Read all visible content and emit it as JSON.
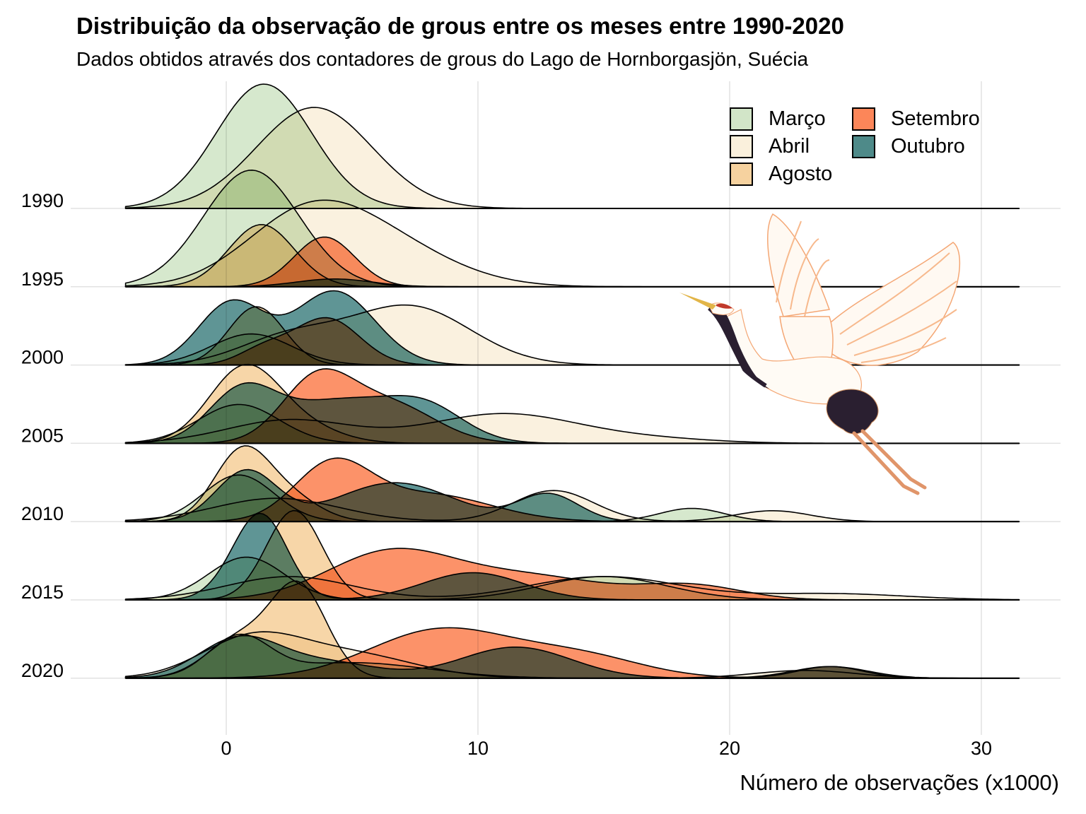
{
  "title": "Distribuição da observação de grous entre os meses entre 1990-2020",
  "subtitle": "Dados obtidos através dos contadores de grous do Lago de Hornborgasjön, Suécia",
  "illustration": "flying-crane-icon",
  "chart_data": {
    "type": "ridgeline-density",
    "title": "Distribuição da observação de grous entre os meses entre 1990-2020",
    "subtitle": "Dados obtidos através dos contadores de grous do Lago de Hornborgasjön, Suécia",
    "xlabel": "Número de observações (x1000)",
    "ylabel": "",
    "xlim": [
      -4,
      31.5
    ],
    "x_ticks": [
      0,
      10,
      20,
      30
    ],
    "x_tick_labels": [
      "0",
      "10",
      "20",
      "30"
    ],
    "y_categories": [
      "1990",
      "1995",
      "2000",
      "2005",
      "2010",
      "2015",
      "2020"
    ],
    "grid": true,
    "legend": {
      "position": "top-right",
      "entries": [
        {
          "label": "Março",
          "color": "#D2E5C8"
        },
        {
          "label": "Abril",
          "color": "#FAF0DC"
        },
        {
          "label": "Agosto",
          "color": "#F6D29F"
        },
        {
          "label": "Setembro",
          "color": "#FC8659"
        },
        {
          "label": "Outubro",
          "color": "#4E8A89"
        }
      ]
    },
    "series_note": "Each density modelled as a mixture of gaussians [mean, sd, peak height in row units]",
    "rows": [
      {
        "year": "1990",
        "densities": [
          {
            "month": "Março",
            "components": [
              [
                1.5,
                1.9,
                1.6
              ]
            ]
          },
          {
            "month": "Abril",
            "components": [
              [
                3.5,
                2.3,
                1.3
              ]
            ]
          }
        ]
      },
      {
        "year": "1995",
        "densities": [
          {
            "month": "Março",
            "components": [
              [
                1.0,
                1.9,
                1.5
              ]
            ]
          },
          {
            "month": "Abril",
            "components": [
              [
                3.0,
                2.4,
                0.75
              ],
              [
                6.0,
                2.8,
                0.55
              ]
            ]
          },
          {
            "month": "Agosto",
            "components": [
              [
                1.4,
                1.3,
                0.8
              ]
            ]
          },
          {
            "month": "Setembro",
            "components": [
              [
                3.9,
                1.2,
                0.64
              ]
            ]
          },
          {
            "month": "Outubro",
            "components": [
              [
                4.3,
                1.5,
                0.1
              ]
            ]
          }
        ]
      },
      {
        "year": "2000",
        "densities": [
          {
            "month": "Março",
            "components": [
              [
                1.0,
                1.6,
                0.4
              ]
            ]
          },
          {
            "month": "Abril",
            "components": [
              [
                2.5,
                2.0,
                0.35
              ],
              [
                7.3,
                2.4,
                0.75
              ]
            ]
          },
          {
            "month": "Agosto",
            "components": [
              [
                1.2,
                1.1,
                0.75
              ]
            ]
          },
          {
            "month": "Setembro",
            "components": [
              [
                4.0,
                1.3,
                0.6
              ],
              [
                1.5,
                1.0,
                0.2
              ]
            ]
          },
          {
            "month": "Outubro",
            "components": [
              [
                0.2,
                1.3,
                0.8
              ],
              [
                4.3,
                1.6,
                0.95
              ]
            ]
          }
        ]
      },
      {
        "year": "2005",
        "densities": [
          {
            "month": "Março",
            "components": [
              [
                0.5,
                1.6,
                0.5
              ]
            ]
          },
          {
            "month": "Abril",
            "components": [
              [
                2.5,
                2.5,
                0.3
              ],
              [
                11.0,
                3.0,
                0.38
              ],
              [
                17.0,
                2.5,
                0.05
              ]
            ]
          },
          {
            "month": "Agosto",
            "components": [
              [
                0.7,
                1.4,
                0.95
              ],
              [
                3.0,
                1.5,
                0.2
              ]
            ]
          },
          {
            "month": "Setembro",
            "components": [
              [
                3.6,
                1.4,
                0.8
              ],
              [
                6.5,
                1.8,
                0.5
              ]
            ]
          },
          {
            "month": "Outubro",
            "components": [
              [
                0.6,
                1.3,
                0.6
              ],
              [
                4.5,
                2.5,
                0.55
              ],
              [
                8.0,
                1.5,
                0.35
              ]
            ]
          }
        ]
      },
      {
        "year": "2010",
        "densities": [
          {
            "month": "Março",
            "components": [
              [
                0.5,
                1.4,
                0.6
              ],
              [
                18.5,
                1.3,
                0.17
              ]
            ]
          },
          {
            "month": "Abril",
            "components": [
              [
                2.0,
                2.5,
                0.3
              ],
              [
                13.0,
                1.6,
                0.4
              ],
              [
                21.7,
                1.5,
                0.14
              ]
            ]
          },
          {
            "month": "Agosto",
            "components": [
              [
                0.6,
                1.1,
                0.88
              ],
              [
                2.5,
                1.2,
                0.3
              ]
            ]
          },
          {
            "month": "Setembro",
            "components": [
              [
                4.2,
                1.5,
                0.7
              ],
              [
                8.0,
                2.5,
                0.35
              ]
            ]
          },
          {
            "month": "Outubro",
            "components": [
              [
                0.8,
                1.2,
                0.65
              ],
              [
                6.7,
                2.3,
                0.5
              ],
              [
                12.8,
                1.2,
                0.35
              ]
            ]
          }
        ]
      },
      {
        "year": "2015",
        "densities": [
          {
            "month": "Março",
            "components": [
              [
                0.8,
                1.5,
                0.55
              ],
              [
                15.0,
                2.5,
                0.3
              ]
            ]
          },
          {
            "month": "Abril",
            "components": [
              [
                2.5,
                2.5,
                0.3
              ],
              [
                15.0,
                3.0,
                0.3
              ],
              [
                24.0,
                3.0,
                0.08
              ]
            ]
          },
          {
            "month": "Agosto",
            "components": [
              [
                2.7,
                1.1,
                1.15
              ]
            ]
          },
          {
            "month": "Setembro",
            "components": [
              [
                6.5,
                2.5,
                0.6
              ],
              [
                12.0,
                3.0,
                0.3
              ],
              [
                18.5,
                2.0,
                0.18
              ]
            ]
          },
          {
            "month": "Outubro",
            "components": [
              [
                1.5,
                1.0,
                0.95
              ],
              [
                0.5,
                1.0,
                0.25
              ],
              [
                9.8,
                2.0,
                0.35
              ]
            ]
          }
        ]
      },
      {
        "year": "2020",
        "densities": [
          {
            "month": "Março",
            "components": [
              [
                0.5,
                1.2,
                0.5
              ],
              [
                5.0,
                3.0,
                0.2
              ]
            ]
          },
          {
            "month": "Abril",
            "components": [
              [
                1.0,
                2.0,
                0.5
              ],
              [
                5.0,
                2.5,
                0.3
              ],
              [
                23.0,
                2.0,
                0.1
              ]
            ]
          },
          {
            "month": "Agosto",
            "components": [
              [
                2.9,
                1.1,
                1.15
              ],
              [
                0.5,
                1.3,
                0.5
              ]
            ]
          },
          {
            "month": "Setembro",
            "components": [
              [
                8.5,
                2.8,
                0.62
              ],
              [
                14.0,
                2.5,
                0.28
              ],
              [
                24.0,
                1.3,
                0.15
              ]
            ]
          },
          {
            "month": "Outubro",
            "components": [
              [
                0.5,
                1.6,
                0.5
              ],
              [
                4.0,
                2.0,
                0.2
              ],
              [
                11.5,
                2.2,
                0.4
              ],
              [
                24.0,
                1.5,
                0.15
              ]
            ]
          }
        ]
      }
    ]
  }
}
